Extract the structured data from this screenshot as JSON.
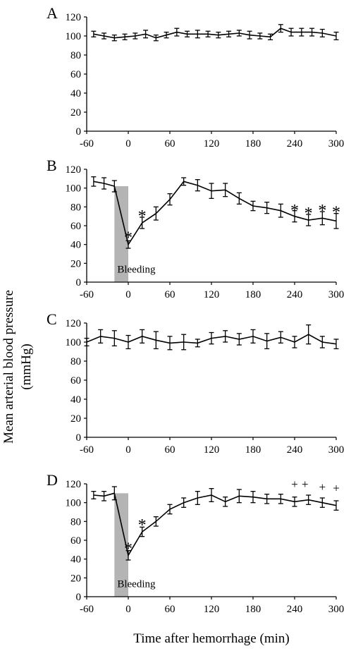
{
  "chart_data": {
    "type": "line",
    "xlabel": "Time after hemorrhage (min)",
    "ylabel": "Mean arterial blood pressure (mmHg)",
    "ylabel_lines": [
      "Mean arterial blood pressure",
      "(mmHg)"
    ],
    "xlim": [
      -60,
      300
    ],
    "ylim": [
      0,
      120
    ],
    "xticks": [
      "-60",
      "0",
      "60",
      "120",
      "180",
      "240",
      "300"
    ],
    "yticks": [
      "0",
      "20",
      "40",
      "60",
      "80",
      "100",
      "120"
    ],
    "panels": [
      {
        "label": "A",
        "x": [
          -50,
          -35,
          -20,
          -5,
          10,
          25,
          40,
          55,
          70,
          85,
          100,
          115,
          130,
          145,
          160,
          175,
          190,
          205,
          220,
          235,
          250,
          265,
          280,
          300
        ],
        "y": [
          102,
          100,
          98,
          99,
          100,
          102,
          98,
          101,
          104,
          102,
          102,
          102,
          101,
          102,
          103,
          101,
          100,
          99,
          108,
          104,
          104,
          104,
          103,
          100
        ],
        "err": [
          3,
          3,
          3,
          3,
          3,
          4,
          3,
          3,
          4,
          3,
          4,
          3,
          3,
          3,
          3,
          4,
          3,
          3,
          4,
          4,
          4,
          4,
          4,
          4
        ],
        "bleeding": null,
        "markers": []
      },
      {
        "label": "B",
        "x": [
          -50,
          -35,
          -20,
          0,
          20,
          40,
          60,
          80,
          100,
          120,
          140,
          160,
          180,
          200,
          220,
          240,
          260,
          280,
          300
        ],
        "y": [
          107,
          105,
          102,
          40,
          63,
          73,
          88,
          107,
          103,
          97,
          98,
          89,
          81,
          79,
          76,
          70,
          66,
          68,
          65
        ],
        "err": [
          5,
          6,
          6,
          4,
          6,
          7,
          6,
          4,
          6,
          8,
          7,
          6,
          5,
          6,
          7,
          6,
          6,
          7,
          8
        ],
        "bleeding": {
          "x_start": -20,
          "x_end": 0,
          "top": 102,
          "label": "Bleeding"
        },
        "markers": [
          {
            "symbol": "*",
            "x": 0,
            "y": 52
          },
          {
            "symbol": "*",
            "x": 20,
            "y": 75
          },
          {
            "symbol": "*",
            "x": 240,
            "y": 81
          },
          {
            "symbol": "*",
            "x": 260,
            "y": 78
          },
          {
            "symbol": "*",
            "x": 280,
            "y": 81
          },
          {
            "symbol": "*",
            "x": 300,
            "y": 79
          }
        ]
      },
      {
        "label": "C",
        "x": [
          -60,
          -40,
          -20,
          0,
          20,
          40,
          60,
          80,
          100,
          120,
          140,
          160,
          180,
          200,
          220,
          240,
          260,
          280,
          300
        ],
        "y": [
          100,
          106,
          104,
          100,
          106,
          102,
          99,
          100,
          99,
          104,
          106,
          103,
          106,
          101,
          105,
          100,
          108,
          100,
          98
        ],
        "err": [
          4,
          7,
          8,
          7,
          7,
          9,
          7,
          8,
          4,
          6,
          6,
          6,
          7,
          8,
          6,
          6,
          10,
          6,
          5
        ],
        "bleeding": null,
        "markers": []
      },
      {
        "label": "D",
        "x": [
          -50,
          -35,
          -20,
          0,
          20,
          40,
          60,
          80,
          100,
          120,
          140,
          160,
          180,
          200,
          220,
          240,
          260,
          280,
          300
        ],
        "y": [
          108,
          107,
          110,
          44,
          69,
          80,
          93,
          100,
          105,
          108,
          101,
          107,
          106,
          104,
          104,
          101,
          103,
          100,
          97
        ],
        "err": [
          4,
          5,
          7,
          5,
          5,
          5,
          5,
          5,
          7,
          7,
          5,
          7,
          6,
          5,
          5,
          5,
          5,
          5,
          5
        ],
        "bleeding": {
          "x_start": -20,
          "x_end": 0,
          "top": 110,
          "label": "Bleeding"
        },
        "markers": [
          {
            "symbol": "*",
            "x": 0,
            "y": 56
          },
          {
            "symbol": "*",
            "x": 20,
            "y": 81
          },
          {
            "symbol": "+",
            "x": 240,
            "y": 120
          },
          {
            "symbol": "+",
            "x": 255,
            "y": 120
          },
          {
            "symbol": "+",
            "x": 280,
            "y": 117
          },
          {
            "symbol": "+",
            "x": 300,
            "y": 116
          }
        ]
      }
    ]
  }
}
